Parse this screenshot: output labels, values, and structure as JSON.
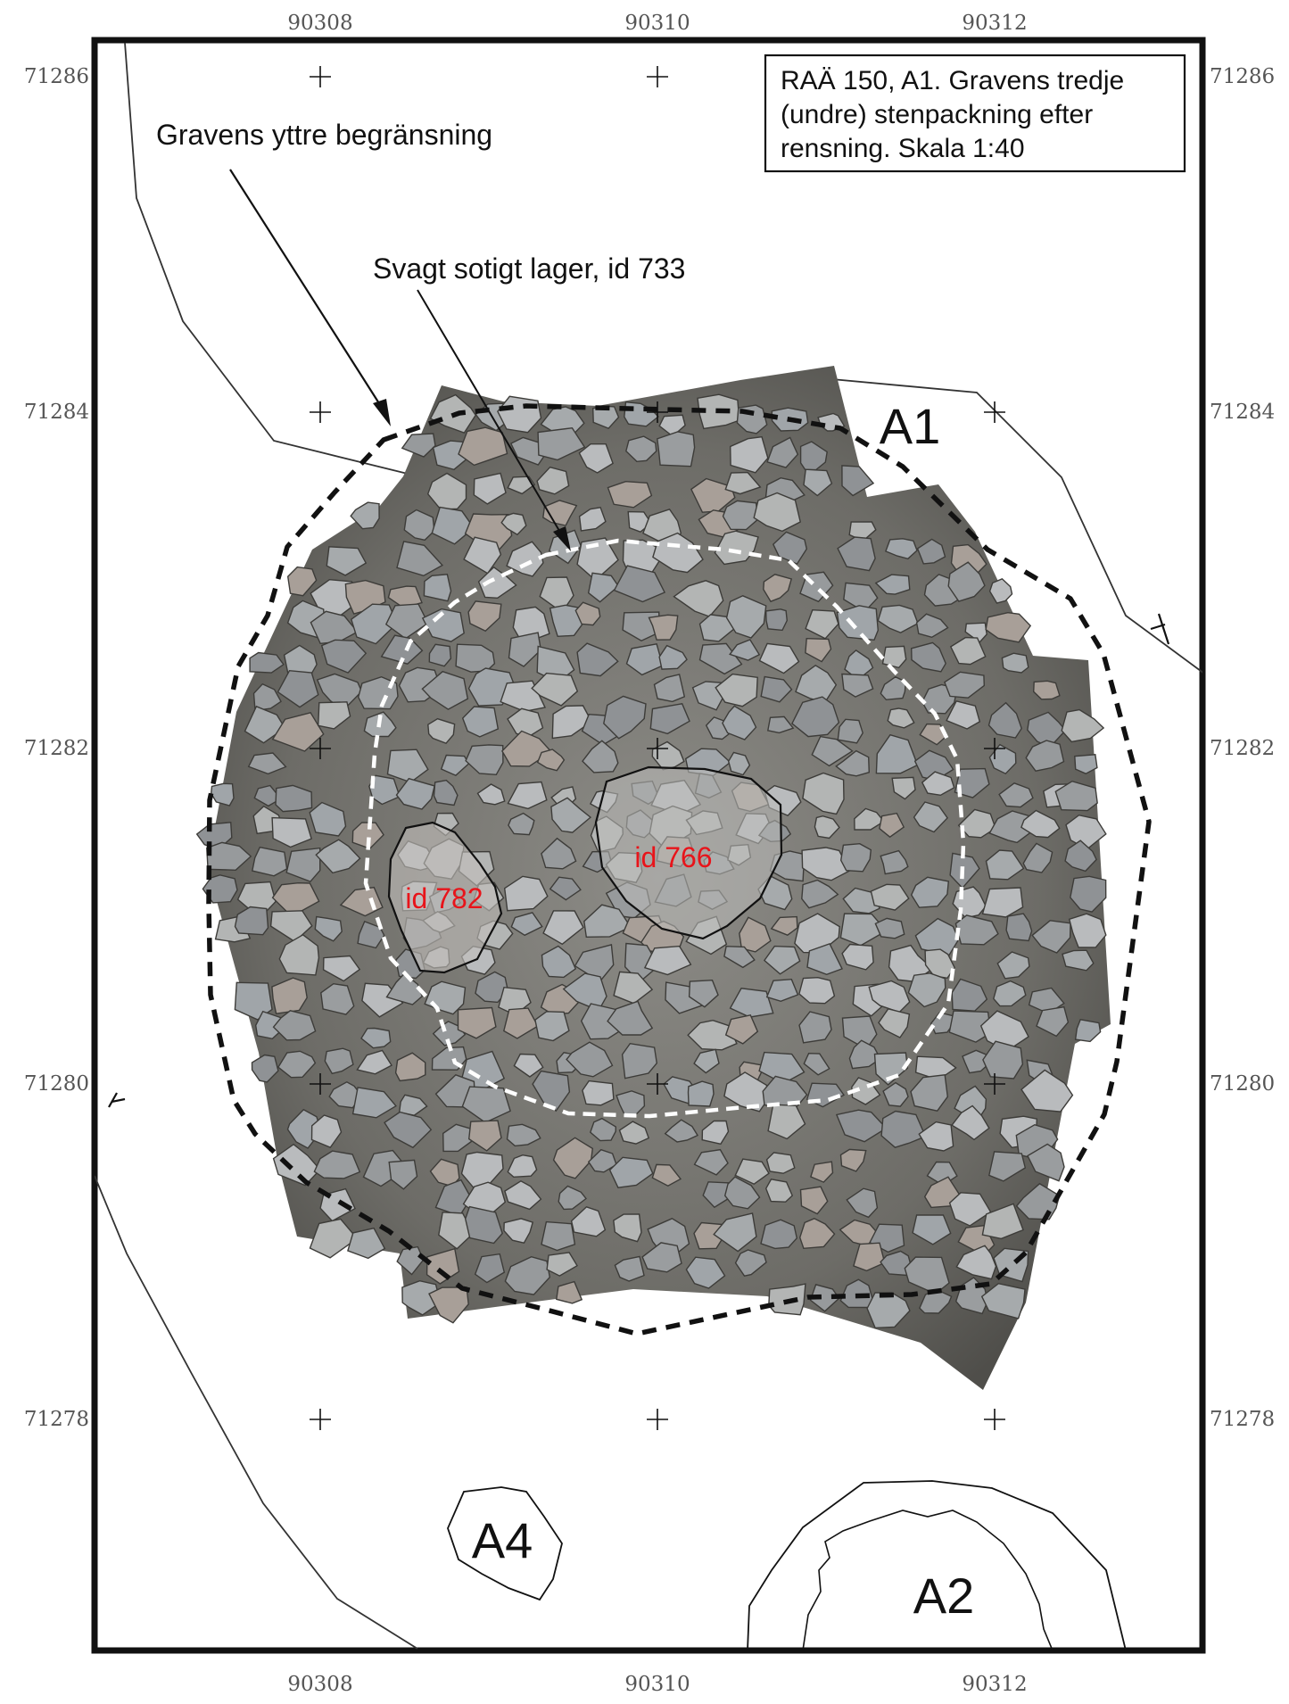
{
  "title_box": {
    "lines": [
      "RAÄ 150, A1. Gravens tredje",
      "(undre) stenpackning efter",
      "rensning. Skala 1:40"
    ]
  },
  "grid": {
    "x_labels": [
      "90308",
      "90310",
      "90312"
    ],
    "y_labels": [
      "71286",
      "71284",
      "71282",
      "71280",
      "71278"
    ]
  },
  "annotations": {
    "outer_boundary": "Gravens yttre begränsning",
    "sooty_layer": "Svagt sotigt lager, id 733"
  },
  "features": {
    "id_766": "id 766",
    "id_782": "id 782",
    "a1": "A1",
    "a2": "A2",
    "a4": "A4"
  },
  "colors": {
    "frame": "#111111",
    "outer_boundary": "#111111",
    "inner_boundary": "#ffffff",
    "id_labels": "#e8141a",
    "photo_base": "#6b6a66",
    "stone": "#a5a9ab"
  }
}
